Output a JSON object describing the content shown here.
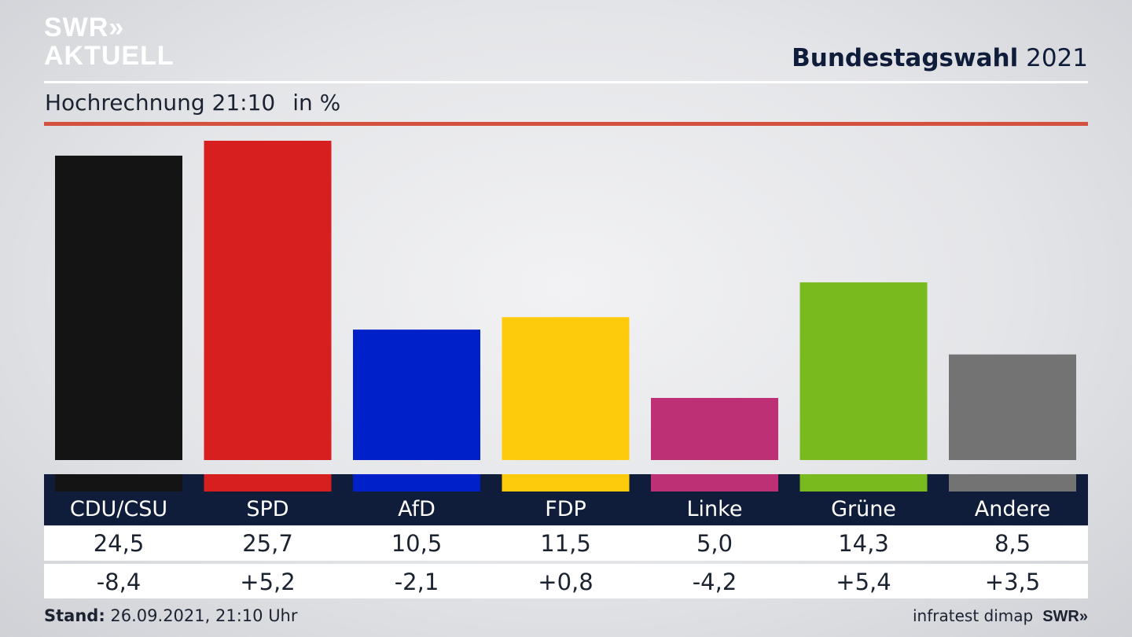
{
  "header": {
    "logo_line1": "SWR»",
    "logo_line2": "AKTUELL",
    "title_bold": "Bundestagswahl",
    "title_year": "2021",
    "subtitle": "Hochrechnung 21:10",
    "unit": "in %"
  },
  "chart_data": {
    "type": "bar",
    "title": "Bundestagswahl 2021",
    "subtitle": "Hochrechnung 21:10",
    "unit": "in %",
    "categories": [
      "CDU/CSU",
      "SPD",
      "AfD",
      "FDP",
      "Linke",
      "Grüne",
      "Andere"
    ],
    "values": [
      24.5,
      25.7,
      10.5,
      11.5,
      5.0,
      14.3,
      8.5
    ],
    "value_labels": [
      "24,5",
      "25,7",
      "10,5",
      "11,5",
      "5,0",
      "14,3",
      "8,5"
    ],
    "changes": [
      -8.4,
      5.2,
      -2.1,
      0.8,
      -4.2,
      5.4,
      3.5
    ],
    "change_labels": [
      "-8,4",
      "+5,2",
      "-2,1",
      "+0,8",
      "-4,2",
      "+5,4",
      "+3,5"
    ],
    "colors": [
      "#141414",
      "#d81f1f",
      "#0020c9",
      "#fdcb0b",
      "#be3075",
      "#79bb1e",
      "#737373"
    ],
    "ylim": [
      0,
      26.9
    ],
    "grid": false
  },
  "colors": {
    "navy": "#0f1d3a",
    "accent_red": "#d4503f"
  },
  "footer": {
    "stand_label": "Stand:",
    "stand_value": "26.09.2021, 21:10 Uhr",
    "source": "infratest dimap",
    "logo": "SWR»"
  }
}
